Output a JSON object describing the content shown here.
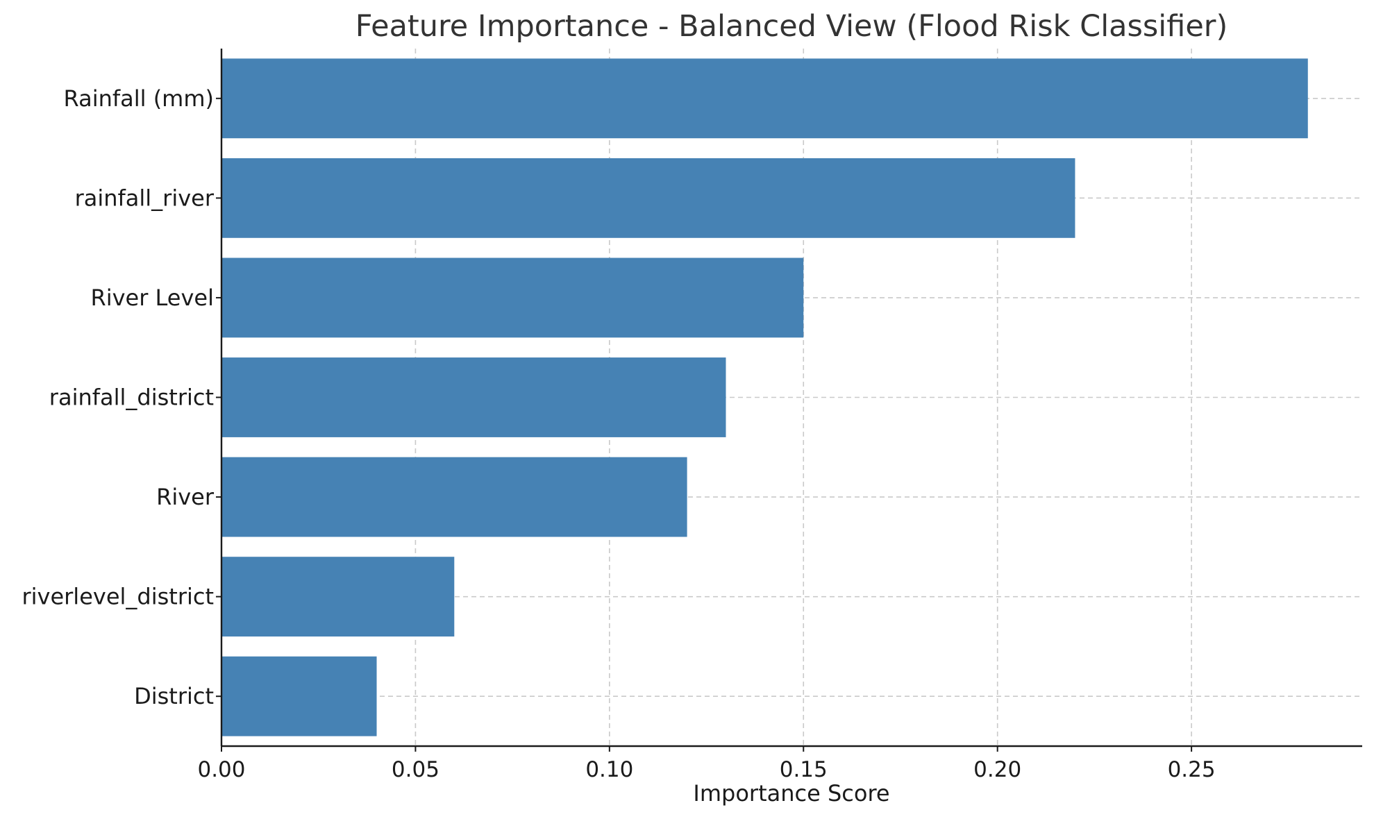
{
  "chart_data": {
    "type": "bar",
    "orientation": "horizontal",
    "title": "Feature Importance - Balanced View (Flood Risk Classifier)",
    "xlabel": "Importance Score",
    "ylabel": "",
    "categories": [
      "Rainfall (mm)",
      "rainfall_river",
      "River Level",
      "rainfall_district",
      "River",
      "riverlevel_district",
      "District"
    ],
    "values": [
      0.28,
      0.22,
      0.15,
      0.13,
      0.12,
      0.06,
      0.04
    ],
    "xlim": [
      0,
      0.294
    ],
    "xticks": [
      0.0,
      0.05,
      0.1,
      0.15,
      0.2,
      0.25
    ],
    "xtick_labels": [
      "0.00",
      "0.05",
      "0.10",
      "0.15",
      "0.20",
      "0.25"
    ],
    "grid": true,
    "bar_color": "#4682b4"
  }
}
